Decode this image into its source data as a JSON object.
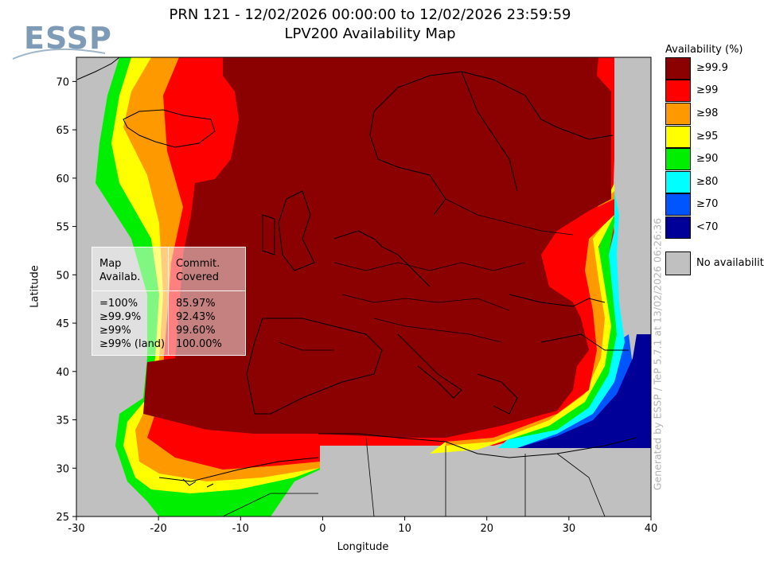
{
  "header": {
    "logo_text": "ESSP",
    "title_line1": "PRN 121 - 12/02/2026 00:00:00 to 12/02/2026 23:59:59",
    "title_line2": "LPV200 Availability Map"
  },
  "axes": {
    "xlabel": "Longitude",
    "ylabel": "Latitude",
    "x_ticks": [
      "-30",
      "-20",
      "-10",
      "0",
      "10",
      "20",
      "30",
      "40"
    ],
    "y_ticks": [
      "70",
      "65",
      "60",
      "55",
      "50",
      "45",
      "40",
      "35",
      "30",
      "25"
    ],
    "lon_range": [
      -30,
      40
    ],
    "lat_range": [
      25,
      72.5
    ]
  },
  "legend": {
    "title": "Availability (%)",
    "items": [
      {
        "label": "≥99.9",
        "color": "#8b0000"
      },
      {
        "label": "≥99",
        "color": "#ff0000"
      },
      {
        "label": "≥98",
        "color": "#ff9900"
      },
      {
        "label": "≥95",
        "color": "#ffff00"
      },
      {
        "label": "≥90",
        "color": "#00ee00"
      },
      {
        "label": "≥80",
        "color": "#00ffff"
      },
      {
        "label": "≥70",
        "color": "#0055ff"
      },
      {
        "label": "<70",
        "color": "#000099"
      }
    ],
    "no_availability": {
      "label": "No availability",
      "color": "#c0c0c0"
    }
  },
  "stats": {
    "col1_header": [
      "Map",
      "Availab."
    ],
    "col2_header": [
      "Commit.",
      "Covered"
    ],
    "rows": [
      {
        "label": "=100%",
        "value": "85.97%"
      },
      {
        "label": "≥99.9%",
        "value": "92.43%"
      },
      {
        "label": "≥99%",
        "value": "99.60%"
      },
      {
        "label": "≥99% (land)",
        "value": "100.00%"
      }
    ]
  },
  "generated_by": "Generated by ESSP / TeP 5.7.1 at 13/02/2026 06:26:36"
}
